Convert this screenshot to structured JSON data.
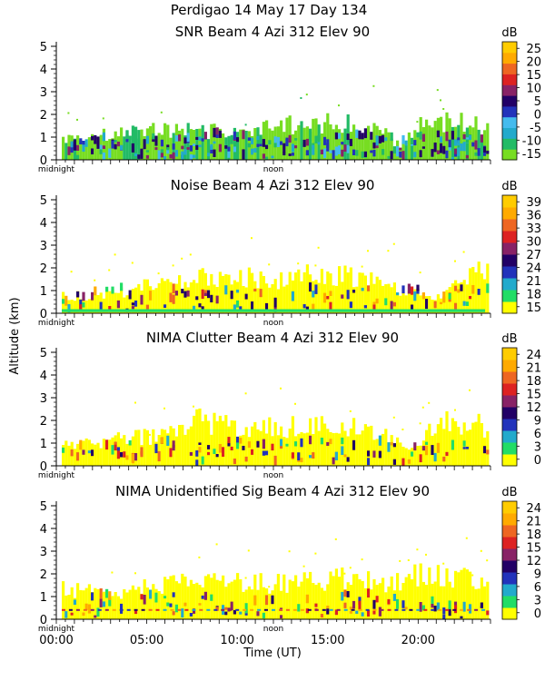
{
  "suptitle": "Perdigao  14 May 17 Day 134",
  "ylabel": "Altitude (km)",
  "xlabel": "Time (UT)",
  "cbar_unit": "dB",
  "x_ticks": [
    "00:00",
    "05:00",
    "10:00",
    "15:00",
    "20:00"
  ],
  "marker_labels": {
    "midnight": "midnight",
    "noon": "noon"
  },
  "y_ticks": [
    "0",
    "1",
    "2",
    "3",
    "4",
    "5"
  ],
  "chart_data": [
    {
      "type": "heatmap",
      "title": "SNR Beam 4 Azi 312 Elev 90",
      "xlim": [
        0,
        24
      ],
      "ylim": [
        0,
        5.2
      ],
      "colorbar_ticks": [
        "-15",
        "-10",
        "-5",
        "0",
        "5",
        "10",
        "15",
        "20",
        "25"
      ],
      "colorbar_colors": [
        "#77dd22",
        "#22bb66",
        "#22aacc",
        "#44bbee",
        "#2233bb",
        "#220066",
        "#882266",
        "#dd2222",
        "#ee6622",
        "#ffaa00",
        "#ffcc00"
      ],
      "profile": [
        {
          "t": 0.5,
          "top": 1.0
        },
        {
          "t": 2,
          "top": 1.1
        },
        {
          "t": 4,
          "top": 1.3
        },
        {
          "t": 6,
          "top": 1.4
        },
        {
          "t": 8,
          "top": 1.4
        },
        {
          "t": 10,
          "top": 1.3
        },
        {
          "t": 12,
          "top": 1.6
        },
        {
          "t": 14,
          "top": 1.8
        },
        {
          "t": 16,
          "top": 1.7
        },
        {
          "t": 18,
          "top": 1.3
        },
        {
          "t": 19,
          "top": 0.6
        },
        {
          "t": 20,
          "top": 1.6
        },
        {
          "t": 22,
          "top": 1.8
        },
        {
          "t": 23.7,
          "top": 1.6
        }
      ]
    },
    {
      "type": "heatmap",
      "title": "Noise Beam 4 Azi 312 Elev 90",
      "xlim": [
        0,
        24
      ],
      "ylim": [
        0,
        5.2
      ],
      "colorbar_ticks": [
        "15",
        "18",
        "21",
        "24",
        "27",
        "30",
        "33",
        "36",
        "39"
      ],
      "colorbar_colors": [
        "#ffff00",
        "#22dd66",
        "#22aacc",
        "#2233bb",
        "#220066",
        "#882266",
        "#dd2222",
        "#ee6622",
        "#ffaa00",
        "#ffcc00"
      ],
      "profile": [
        {
          "t": 0.5,
          "top": 0.8
        },
        {
          "t": 3,
          "top": 0.9
        },
        {
          "t": 6,
          "top": 1.5
        },
        {
          "t": 9,
          "top": 1.8
        },
        {
          "t": 12,
          "top": 1.6
        },
        {
          "t": 14,
          "top": 1.9
        },
        {
          "t": 16,
          "top": 1.8
        },
        {
          "t": 18,
          "top": 1.4
        },
        {
          "t": 21,
          "top": 0.7
        },
        {
          "t": 23.7,
          "top": 2.2
        }
      ]
    },
    {
      "type": "heatmap",
      "title": "NIMA Clutter Beam 4 Azi 312 Elev 90",
      "xlim": [
        0,
        24
      ],
      "ylim": [
        0,
        5.2
      ],
      "colorbar_ticks": [
        "0",
        "3",
        "6",
        "9",
        "12",
        "15",
        "18",
        "21",
        "24"
      ],
      "colorbar_colors": [
        "#ffff00",
        "#22dd66",
        "#22aacc",
        "#2233bb",
        "#220066",
        "#882266",
        "#dd2222",
        "#ee6622",
        "#ffaa00",
        "#ffcc00"
      ],
      "profile": [
        {
          "t": 0.5,
          "top": 1.1
        },
        {
          "t": 3,
          "top": 1.2
        },
        {
          "t": 6,
          "top": 1.5
        },
        {
          "t": 8,
          "top": 2.2
        },
        {
          "t": 10,
          "top": 1.8
        },
        {
          "t": 13,
          "top": 1.9
        },
        {
          "t": 16,
          "top": 2.0
        },
        {
          "t": 18,
          "top": 1.5
        },
        {
          "t": 19.5,
          "top": 0.7
        },
        {
          "t": 21,
          "top": 2.1
        },
        {
          "t": 23.7,
          "top": 1.9
        }
      ]
    },
    {
      "type": "heatmap",
      "title": "NIMA Unidentified Sig Beam 4 Azi 312 Elev 90",
      "xlim": [
        0,
        24
      ],
      "ylim": [
        0,
        5.2
      ],
      "colorbar_ticks": [
        "0",
        "3",
        "6",
        "9",
        "12",
        "15",
        "18",
        "21",
        "24"
      ],
      "colorbar_colors": [
        "#ffff00",
        "#22dd66",
        "#22aacc",
        "#2233bb",
        "#220066",
        "#882266",
        "#dd2222",
        "#ee6622",
        "#ffaa00",
        "#ffcc00"
      ],
      "profile": [
        {
          "t": 0.5,
          "top": 1.4
        },
        {
          "t": 3,
          "top": 1.3
        },
        {
          "t": 6,
          "top": 1.6
        },
        {
          "t": 8,
          "top": 1.9
        },
        {
          "t": 11,
          "top": 1.7
        },
        {
          "t": 14,
          "top": 1.8
        },
        {
          "t": 16,
          "top": 2.0
        },
        {
          "t": 18,
          "top": 1.6
        },
        {
          "t": 20,
          "top": 2.1
        },
        {
          "t": 23.7,
          "top": 1.9
        }
      ]
    }
  ]
}
